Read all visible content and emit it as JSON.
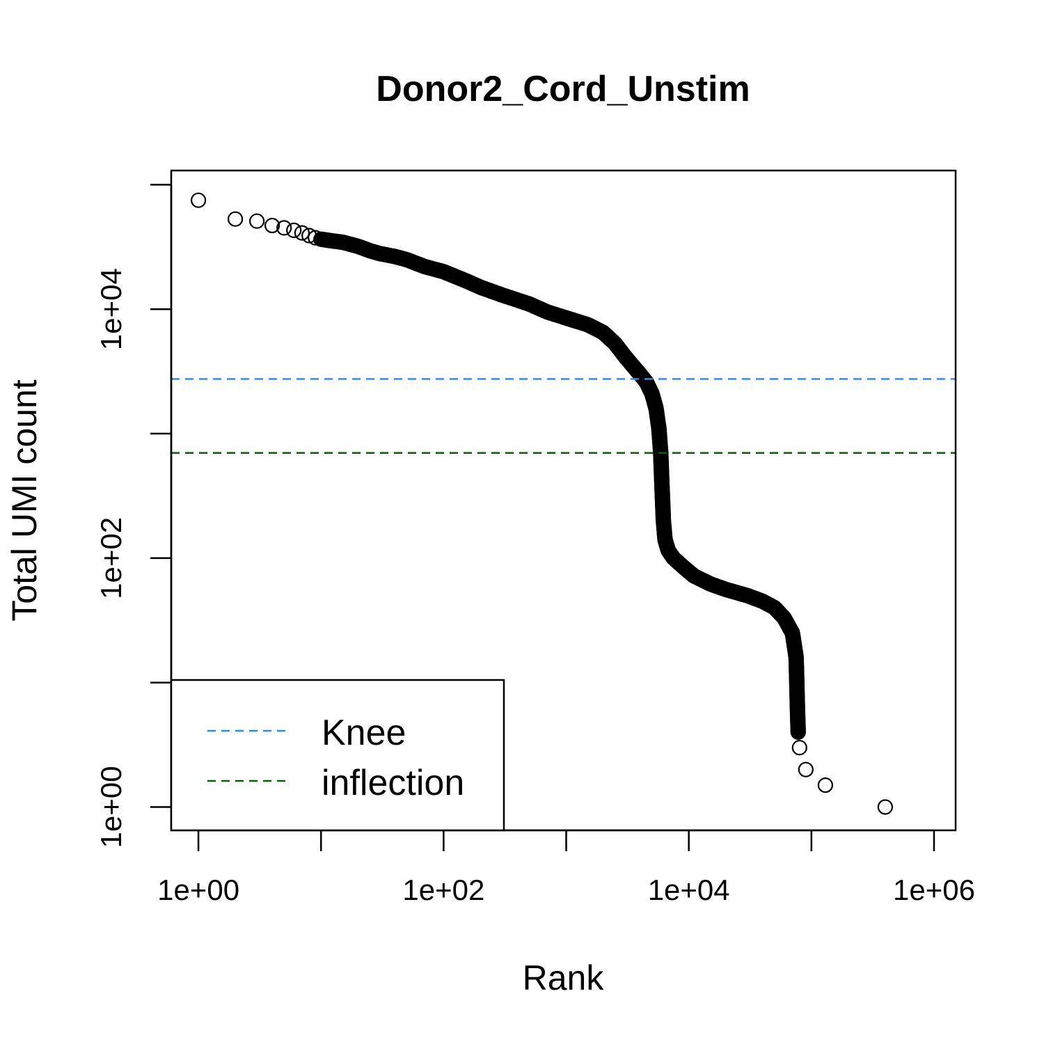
{
  "chart_data": {
    "type": "scatter",
    "title": "Donor2_Cord_Unstim",
    "xlabel": "Rank",
    "ylabel": "Total UMI count",
    "x_scale": "log10",
    "y_scale": "log10",
    "xlim": [
      0.6,
      1500000
    ],
    "ylim": [
      0.65,
      130000
    ],
    "x_ticks": [
      1,
      10,
      100,
      1000,
      10000,
      100000,
      1000000
    ],
    "x_tick_labels": [
      {
        "value": 1,
        "label": "1e+00"
      },
      {
        "value": 100,
        "label": "1e+02"
      },
      {
        "value": 10000,
        "label": "1e+04"
      },
      {
        "value": 1000000,
        "label": "1e+06"
      }
    ],
    "y_ticks": [
      1,
      10,
      100,
      1000,
      10000,
      100000
    ],
    "y_tick_labels": [
      {
        "value": 1,
        "label": "1e+00"
      },
      {
        "value": 100,
        "label": "1e+02"
      },
      {
        "value": 10000,
        "label": "1e+04"
      }
    ],
    "hlines": [
      {
        "name": "Knee",
        "value": 2750,
        "color": "#1E90FF",
        "style": "dashed"
      },
      {
        "name": "inflection",
        "value": 700,
        "color": "#006400",
        "style": "dashed"
      }
    ],
    "legend": {
      "position": "bottom-left",
      "entries": [
        "Knee",
        "inflection"
      ]
    },
    "grid": false,
    "curve_points": [
      [
        1,
        75000
      ],
      [
        2,
        53000
      ],
      [
        3,
        51000
      ],
      [
        4,
        47000
      ],
      [
        5,
        45000
      ],
      [
        6,
        43000
      ],
      [
        7,
        41000
      ],
      [
        8,
        39000
      ],
      [
        9,
        37500
      ],
      [
        10,
        36500
      ],
      [
        12,
        35500
      ],
      [
        15,
        34500
      ],
      [
        20,
        32000
      ],
      [
        25,
        29500
      ],
      [
        30,
        28000
      ],
      [
        40,
        26500
      ],
      [
        50,
        25000
      ],
      [
        70,
        22000
      ],
      [
        100,
        20000
      ],
      [
        150,
        17000
      ],
      [
        200,
        15000
      ],
      [
        300,
        13000
      ],
      [
        500,
        11000
      ],
      [
        700,
        9500
      ],
      [
        1000,
        8500
      ],
      [
        1500,
        7500
      ],
      [
        2000,
        6500
      ],
      [
        2500,
        5300
      ],
      [
        3000,
        4200
      ],
      [
        3500,
        3500
      ],
      [
        4000,
        3000
      ],
      [
        4500,
        2600
      ],
      [
        5000,
        2100
      ],
      [
        5400,
        1600
      ],
      [
        5700,
        1100
      ],
      [
        5900,
        700
      ],
      [
        6000,
        450
      ],
      [
        6100,
        300
      ],
      [
        6200,
        200
      ],
      [
        6400,
        140
      ],
      [
        6800,
        115
      ],
      [
        7500,
        100
      ],
      [
        9000,
        85
      ],
      [
        11000,
        72
      ],
      [
        15000,
        62
      ],
      [
        20000,
        56
      ],
      [
        30000,
        50
      ],
      [
        40000,
        45
      ],
      [
        50000,
        40
      ],
      [
        60000,
        33
      ],
      [
        70000,
        25
      ],
      [
        75000,
        16
      ],
      [
        76000,
        10
      ],
      [
        77000,
        6
      ],
      [
        78000,
        4
      ],
      [
        80000,
        3
      ],
      [
        90000,
        2
      ],
      [
        130000,
        1.5
      ],
      [
        400000,
        1
      ]
    ]
  }
}
